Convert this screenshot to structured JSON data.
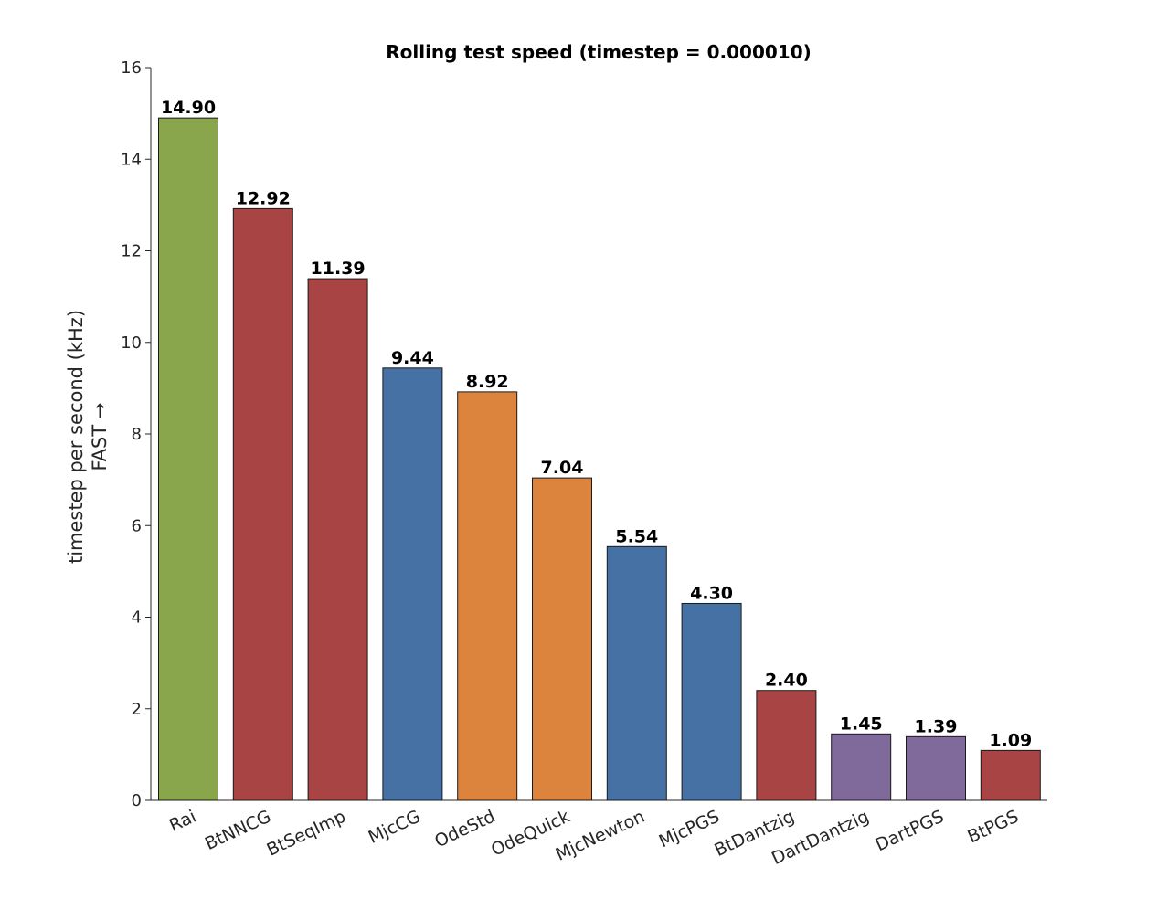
{
  "chart_data": {
    "type": "bar",
    "title": "Rolling test speed (timestep = 0.000010)",
    "ylabel_line1": "timestep per second (kHz)",
    "ylabel_line2": "FAST →",
    "xlabel": "",
    "ylim": [
      0,
      16
    ],
    "yticks": [
      "0",
      "2",
      "4",
      "6",
      "8",
      "10",
      "12",
      "14",
      "16"
    ],
    "grid": false,
    "categories": [
      "Rai",
      "BtNNCG",
      "BtSeqImp",
      "MjcCG",
      "OdeStd",
      "OdeQuick",
      "MjcNewton",
      "MjcPGS",
      "BtDantzig",
      "DartDantzig",
      "DartPGS",
      "BtPGS"
    ],
    "values": [
      14.9,
      12.92,
      11.39,
      9.44,
      8.92,
      7.04,
      5.54,
      4.3,
      2.4,
      1.45,
      1.39,
      1.09
    ],
    "value_labels": [
      "14.90",
      "12.92",
      "11.39",
      "9.44",
      "8.92",
      "7.04",
      "5.54",
      "4.30",
      "2.40",
      "1.45",
      "1.39",
      "1.09"
    ],
    "bar_colors": [
      "#8aa64c",
      "#a84443",
      "#a84443",
      "#4571a5",
      "#dc843d",
      "#dc843d",
      "#4571a5",
      "#4571a5",
      "#a84443",
      "#7f6a9b",
      "#7f6a9b",
      "#a84443"
    ]
  }
}
